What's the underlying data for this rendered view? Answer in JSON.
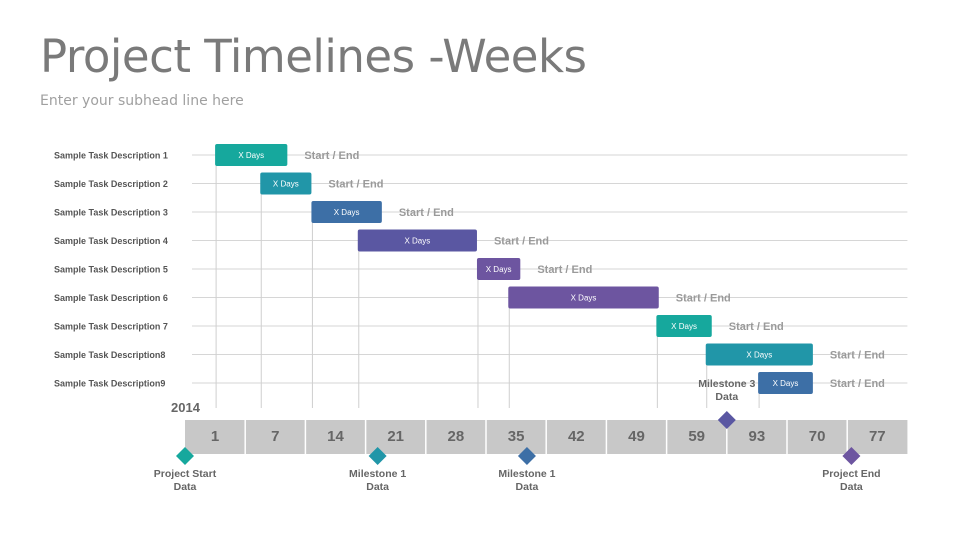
{
  "header": {
    "title": "Project Timelines -Weeks",
    "subtitle": "Enter your subhead line here"
  },
  "chart_data": {
    "type": "gantt",
    "year": "2014",
    "weeks": [
      "1",
      "7",
      "14",
      "21",
      "28",
      "35",
      "42",
      "49",
      "59",
      "93",
      "70",
      "77"
    ],
    "tasks": [
      {
        "name": "Sample Task Description 1",
        "bar_label": "X Days",
        "start": 0.5,
        "end": 1.7,
        "color": "#16a89d",
        "note": "Start / End"
      },
      {
        "name": "Sample Task Description 2",
        "bar_label": "X Days",
        "start": 1.25,
        "end": 2.1,
        "color": "#2196a8",
        "note": "Start / End"
      },
      {
        "name": "Sample Task Description 3",
        "bar_label": "X Days",
        "start": 2.1,
        "end": 3.27,
        "color": "#3d6fa6",
        "note": "Start / End"
      },
      {
        "name": "Sample Task Description 4",
        "bar_label": "X Days",
        "start": 2.87,
        "end": 4.85,
        "color": "#5a57a2",
        "note": "Start / End"
      },
      {
        "name": "Sample Task Description 5",
        "bar_label": "X Days",
        "start": 4.85,
        "end": 5.57,
        "color": "#6d55a0",
        "note": "Start / End"
      },
      {
        "name": "Sample Task Description 6",
        "bar_label": "X Days",
        "start": 5.37,
        "end": 7.87,
        "color": "#6d55a0",
        "note": "Start / End"
      },
      {
        "name": "Sample Task Description 7",
        "bar_label": "X Days",
        "start": 7.83,
        "end": 8.75,
        "color": "#16a89d",
        "note": "Start / End"
      },
      {
        "name": "Sample Task Description8",
        "bar_label": "X Days",
        "start": 8.65,
        "end": 10.43,
        "color": "#2196a8",
        "note": "Start / End"
      },
      {
        "name": "Sample Task Description9",
        "bar_label": "X Days",
        "start": 9.52,
        "end": 10.43,
        "color": "#3d6fa6",
        "note": "Start / End"
      }
    ],
    "milestones": [
      {
        "label_line1": "Project Start",
        "label_line2": "Data",
        "position": 0.0,
        "placement": "below",
        "color": "#16a89d"
      },
      {
        "label_line1": "Milestone 1",
        "label_line2": "Data",
        "position": 3.2,
        "placement": "below",
        "color": "#2196a8"
      },
      {
        "label_line1": "Milestone 1",
        "label_line2": "Data",
        "position": 5.68,
        "placement": "below",
        "color": "#3d6fa6"
      },
      {
        "label_line1": "Milestone 3",
        "label_line2": "Data",
        "position": 9.0,
        "placement": "above",
        "color": "#5a57a2"
      },
      {
        "label_line1": "Project End",
        "label_line2": "Data",
        "position": 11.07,
        "placement": "below",
        "color": "#6d55a0"
      }
    ]
  }
}
